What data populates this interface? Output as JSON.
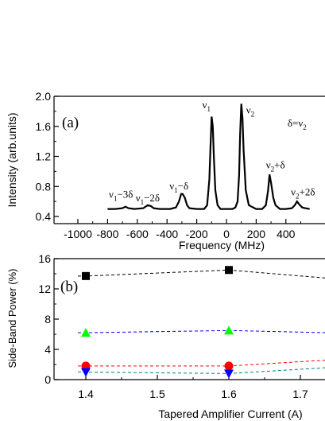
{
  "chart_data": [
    {
      "panel_label": "(a)",
      "type": "line",
      "xlabel": "Frequency (MHz)",
      "ylabel": "Intensity (arb.units)",
      "xlim": [
        -1000,
        560
      ],
      "ylim": [
        0.3,
        2.0
      ],
      "x_ticks": [
        -1000,
        -800,
        -600,
        -400,
        -200,
        0,
        200,
        400
      ],
      "x_tick_labels": [
        "-1000",
        "-800",
        "-600",
        "-400",
        "-200",
        "0",
        "200",
        "400"
      ],
      "y_ticks": [
        0.4,
        0.8,
        1.2,
        1.6,
        2.0
      ],
      "y_tick_labels": [
        "0.4",
        "0.8",
        "1.2",
        "1.6",
        "2.0"
      ],
      "series": [
        {
          "x": [
            -800,
            -750,
            -700,
            -680,
            -660,
            -620,
            -560,
            -530,
            -510,
            -490,
            -450,
            -380,
            -340,
            -320,
            -305,
            -295,
            -280,
            -265,
            -250,
            -200,
            -150,
            -130,
            -115,
            -108,
            -100,
            -92,
            -85,
            -75,
            -60,
            -40,
            -20,
            0,
            20,
            40,
            60,
            75,
            85,
            92,
            100,
            108,
            115,
            130,
            150,
            200,
            240,
            265,
            280,
            290,
            300,
            315,
            330,
            360,
            400,
            440,
            460,
            475,
            490,
            510,
            530,
            560
          ],
          "y": [
            0.5,
            0.5,
            0.51,
            0.53,
            0.51,
            0.5,
            0.51,
            0.55,
            0.54,
            0.51,
            0.5,
            0.5,
            0.52,
            0.6,
            0.7,
            0.7,
            0.65,
            0.55,
            0.51,
            0.5,
            0.5,
            0.55,
            0.9,
            1.3,
            1.73,
            1.6,
            1.2,
            0.75,
            0.55,
            0.5,
            0.5,
            0.5,
            0.5,
            0.5,
            0.52,
            0.6,
            0.95,
            1.5,
            1.9,
            1.7,
            1.3,
            0.75,
            0.55,
            0.5,
            0.5,
            0.55,
            0.75,
            0.96,
            0.85,
            0.65,
            0.55,
            0.5,
            0.5,
            0.51,
            0.55,
            0.6,
            0.56,
            0.52,
            0.51,
            0.5
          ]
        }
      ],
      "annotations": [
        {
          "main": "ν",
          "sub": "1",
          "suffix": "−3δ",
          "x": -710,
          "y": 0.65
        },
        {
          "main": "ν",
          "sub": "1",
          "suffix": "−2δ",
          "x": -530,
          "y": 0.6
        },
        {
          "main": "ν",
          "sub": "1",
          "suffix": "−δ",
          "x": -320,
          "y": 0.76
        },
        {
          "main": "ν",
          "sub": "1",
          "suffix": "",
          "x": -135,
          "y": 1.84
        },
        {
          "main": "ν",
          "sub": "2",
          "suffix": "",
          "x": 160,
          "y": 1.77
        },
        {
          "main": "ν",
          "sub": "2",
          "suffix": "+δ",
          "x": 330,
          "y": 1.04
        },
        {
          "main": "ν",
          "sub": "2",
          "suffix": "+2δ",
          "x": 515,
          "y": 0.68
        },
        {
          "main": "δ=ν",
          "sub": "2",
          "suffix": "",
          "x": 475,
          "y": 1.6
        }
      ]
    },
    {
      "panel_label": "(b)",
      "type": "scatter",
      "xlabel": "Tapered Amplifier Current (A)",
      "ylabel": "Side-Band Power (%)",
      "xlim": [
        1.335,
        1.74
      ],
      "ylim": [
        0,
        16
      ],
      "x_ticks": [
        1.4,
        1.5,
        1.6,
        1.7
      ],
      "x_tick_labels": [
        "1.4",
        "1.5",
        "1.6",
        "1.7"
      ],
      "y_ticks": [
        0,
        4,
        8,
        12,
        16
      ],
      "y_tick_labels": [
        "0",
        "4",
        "8",
        "12",
        "16"
      ],
      "series": [
        {
          "marker": "square",
          "color": "#000000",
          "x": [
            1.4,
            1.6
          ],
          "y": [
            13.7,
            14.5
          ],
          "line_end": [
            1.74,
            13.4
          ]
        },
        {
          "marker": "triangle-up",
          "color": "#00ff00",
          "x": [
            1.4,
            1.6
          ],
          "y": [
            6.2,
            6.5
          ],
          "line_end": [
            1.74,
            6.2
          ]
        },
        {
          "marker": "circle",
          "color": "#ff0000",
          "x": [
            1.4,
            1.6
          ],
          "y": [
            1.8,
            1.8
          ],
          "line_end": [
            1.74,
            2.6
          ]
        },
        {
          "marker": "triangle-down",
          "color": "#0000ff",
          "x": [
            1.4,
            1.6
          ],
          "y": [
            1.0,
            0.8
          ],
          "line_end": [
            1.74,
            1.6
          ]
        }
      ],
      "line_colors": [
        "#000000",
        "#0000ff",
        "#ff0000",
        "#008080"
      ]
    }
  ]
}
